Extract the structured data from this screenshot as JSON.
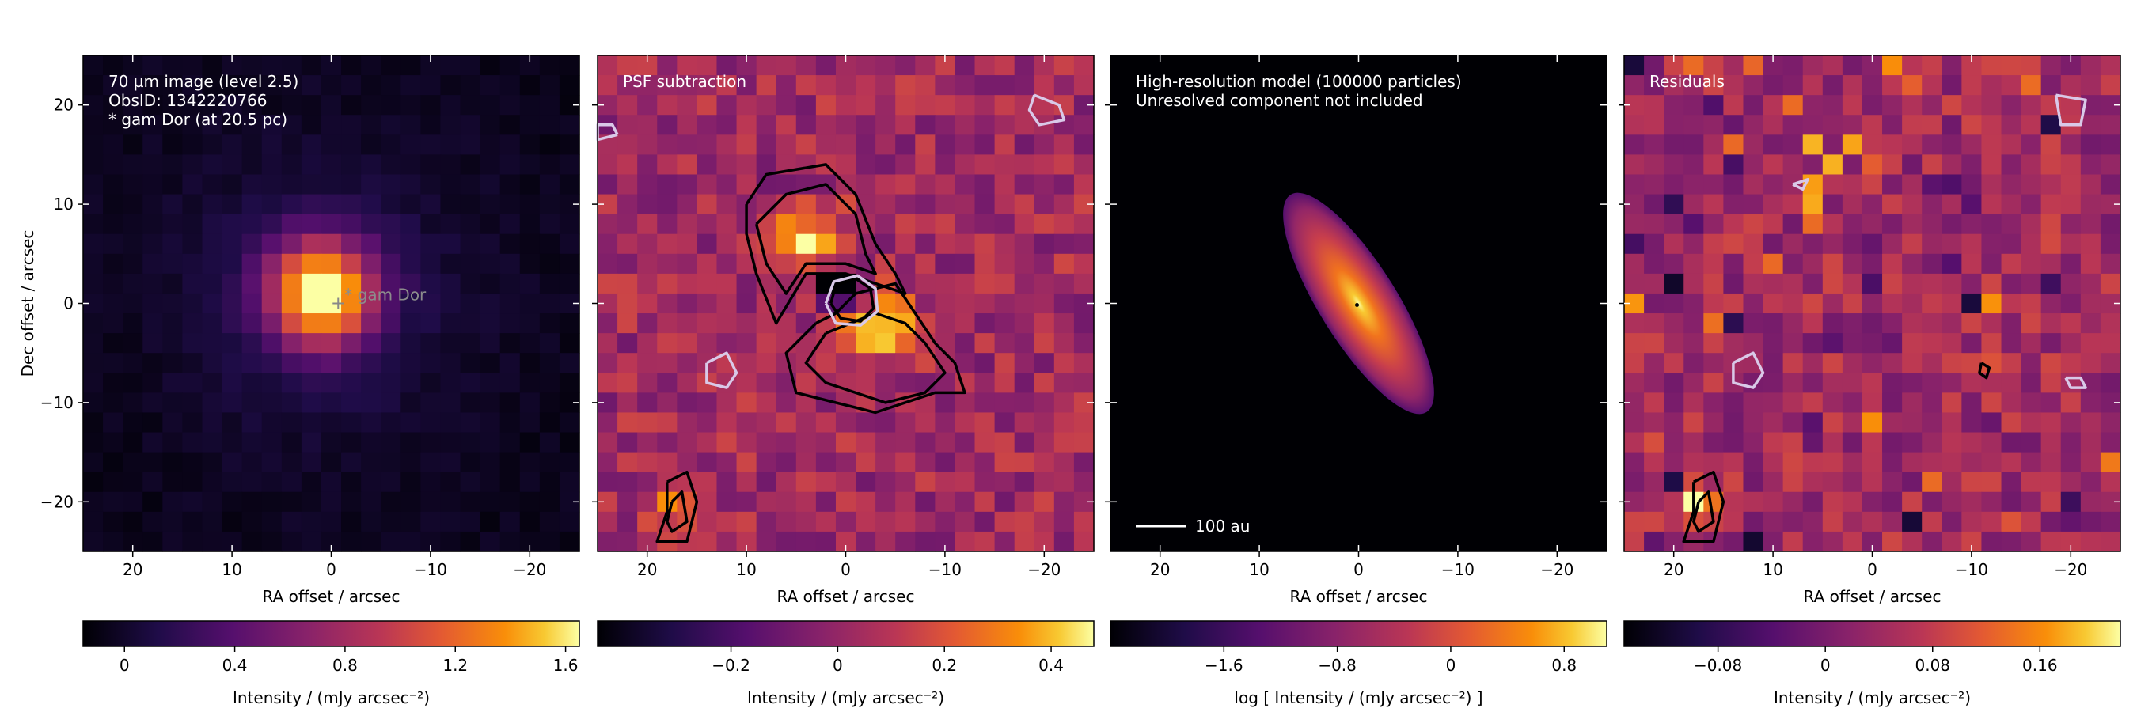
{
  "chart_data": [
    {
      "type": "heatmap",
      "annotations": [
        "70 µm image (level 2.5)",
        "ObsID: 1342220766",
        "* gam Dor (at 20.5 pc)"
      ],
      "star_label": "* gam Dor",
      "xlabel": "RA offset / arcsec",
      "ylabel": "Dec offset / arcsec",
      "xlim": [
        25,
        -25
      ],
      "ylim": [
        -25,
        25
      ],
      "x_ticks": [
        20,
        10,
        0,
        -10,
        -20
      ],
      "y_ticks": [
        20,
        10,
        0,
        -10,
        -20
      ],
      "colormap": "inferno",
      "colorbar": {
        "label": "Intensity / (mJy arcsec⁻²)",
        "range": [
          -0.15,
          1.65
        ],
        "ticks": [
          0,
          0.4,
          0.8,
          1.2,
          1.6
        ]
      }
    },
    {
      "type": "heatmap",
      "annotations": [
        "PSF subtraction"
      ],
      "xlabel": "RA offset / arcsec",
      "xlim": [
        25,
        -25
      ],
      "ylim": [
        -25,
        25
      ],
      "x_ticks": [
        20,
        10,
        0,
        -10,
        -20
      ],
      "y_ticks": [
        20,
        10,
        0,
        -10,
        -20
      ],
      "colormap": "inferno",
      "contours": {
        "positive": "black",
        "negative": "white"
      },
      "colorbar": {
        "label": "Intensity / (mJy arcsec⁻²)",
        "range": [
          -0.45,
          0.48
        ],
        "ticks": [
          -0.2,
          0,
          0.2,
          0.4
        ]
      }
    },
    {
      "type": "heatmap",
      "annotations": [
        "High-resolution model (100000 particles)",
        "Unresolved component not included"
      ],
      "scale_bar": "100 au",
      "xlabel": "RA offset / arcsec",
      "xlim": [
        25,
        -25
      ],
      "ylim": [
        -25,
        25
      ],
      "x_ticks": [
        20,
        10,
        0,
        -10,
        -20
      ],
      "y_ticks": [
        20,
        10,
        0,
        -10,
        -20
      ],
      "colormap": "inferno",
      "colorbar": {
        "label": "log [ Intensity / (mJy arcsec⁻²) ]",
        "range": [
          -2.4,
          1.1
        ],
        "ticks": [
          -1.6,
          -0.8,
          0,
          0.8
        ]
      }
    },
    {
      "type": "heatmap",
      "annotations": [
        "Residuals"
      ],
      "xlabel": "RA offset / arcsec",
      "xlim": [
        25,
        -25
      ],
      "ylim": [
        -25,
        25
      ],
      "x_ticks": [
        20,
        10,
        0,
        -10,
        -20
      ],
      "y_ticks": [
        20,
        10,
        0,
        -10,
        -20
      ],
      "colormap": "inferno",
      "contours": {
        "positive": "black",
        "negative": "white"
      },
      "colorbar": {
        "label": "Intensity / (mJy arcsec⁻²)",
        "range": [
          -0.15,
          0.22
        ],
        "ticks": [
          -0.08,
          0,
          0.08,
          0.16
        ]
      }
    }
  ]
}
